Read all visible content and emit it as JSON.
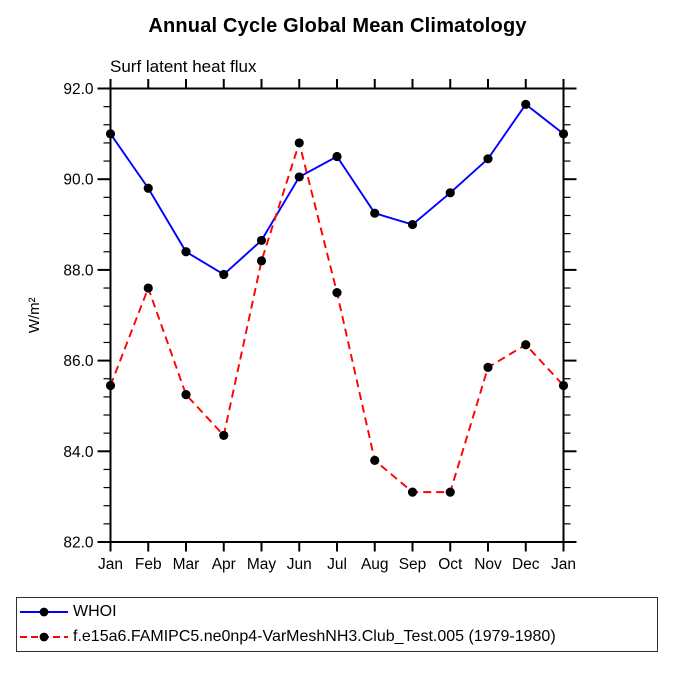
{
  "title": "Annual Cycle Global Mean Climatology",
  "subtitle": "Surf latent heat flux",
  "ylabel": "W/m²",
  "legend": {
    "items": [
      {
        "label": "WHOI",
        "color": "#0000ff",
        "style": "solid"
      },
      {
        "label": "f.e15a6.FAMIPC5.ne0np4-VarMeshNH3.Club_Test.005 (1979-1980)",
        "color": "#ff0000",
        "style": "dashed"
      }
    ]
  },
  "chart_data": {
    "type": "line",
    "title": "Annual Cycle Global Mean Climatology",
    "subtitle": "Surf latent heat flux",
    "ylabel": "W/m²",
    "categories": [
      "Jan",
      "Feb",
      "Mar",
      "Apr",
      "May",
      "Jun",
      "Jul",
      "Aug",
      "Sep",
      "Oct",
      "Nov",
      "Dec",
      "Jan"
    ],
    "series": [
      {
        "name": "WHOI",
        "color": "#0000ff",
        "style": "solid",
        "values": [
          91.0,
          89.8,
          88.4,
          87.9,
          88.65,
          90.05,
          90.5,
          89.25,
          89.0,
          89.7,
          90.45,
          91.65,
          91.0
        ]
      },
      {
        "name": "f.e15a6.FAMIPC5.ne0np4-VarMeshNH3.Club_Test.005 (1979-1980)",
        "color": "#ff0000",
        "style": "dashed",
        "values": [
          85.45,
          87.6,
          85.25,
          84.35,
          88.2,
          90.8,
          87.5,
          83.8,
          83.1,
          83.1,
          85.85,
          86.35,
          85.45
        ]
      }
    ],
    "marker": "filled-circle",
    "marker_color": "#000000",
    "ylim": [
      82.0,
      92.0
    ],
    "ytick_interval": 2.0,
    "yminor_interval": 0.4,
    "ytick_format_decimals": 1,
    "grid": false,
    "legend_position": "bottom-left-box"
  }
}
